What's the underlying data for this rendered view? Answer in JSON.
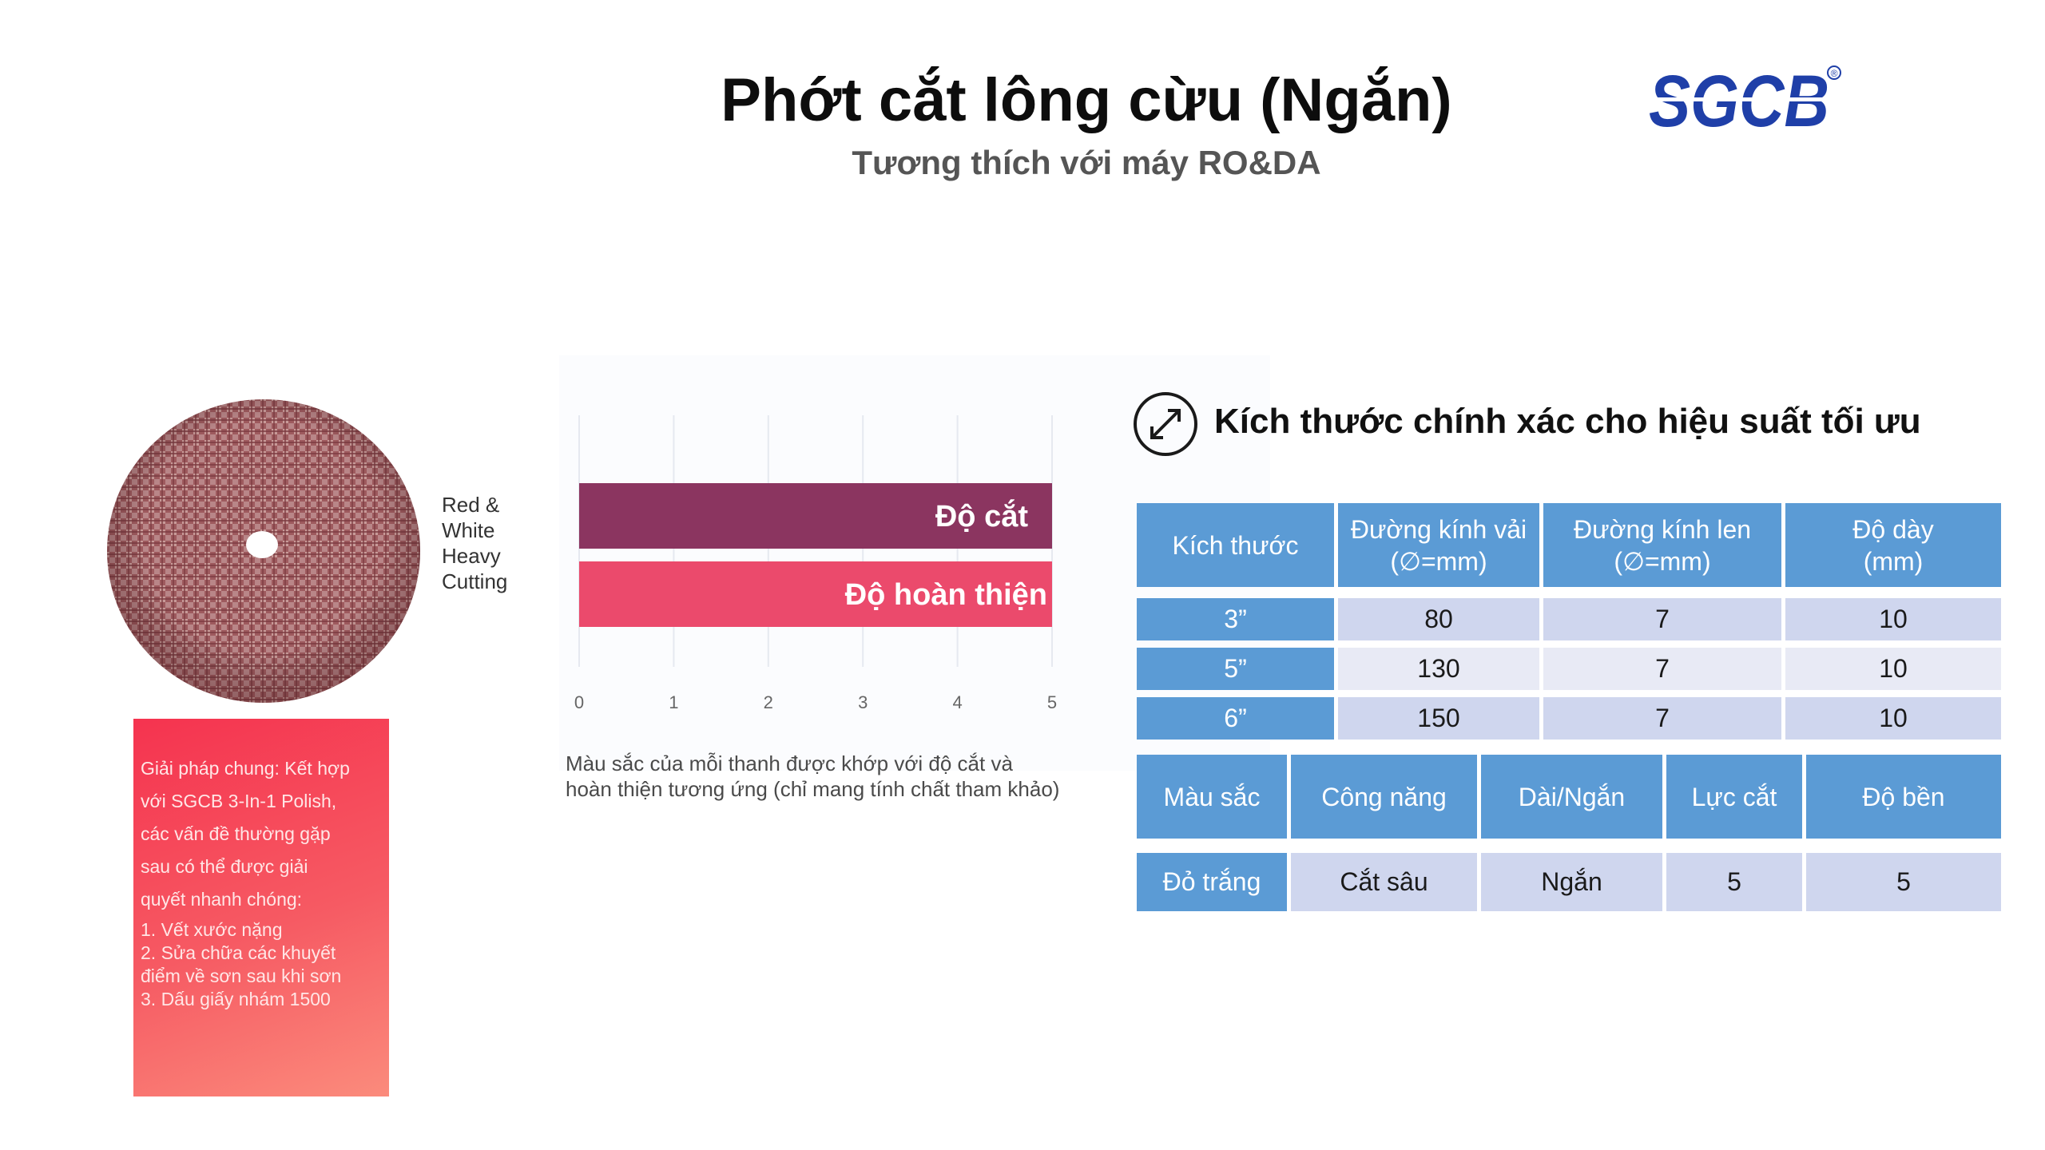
{
  "header": {
    "title": "Phớt cắt lông cừu (Ngắn)",
    "subtitle": "Tương thích với máy RO&DA",
    "logo_text": "SGCB",
    "logo_registered": "®"
  },
  "product": {
    "image_icon": "wool-pad-image",
    "label": [
      "Red &",
      "White",
      "Heavy",
      "Cutting"
    ]
  },
  "solution": {
    "lines": [
      "Giải pháp chung: Kết hợp",
      "với SGCB 3-In-1 Polish,",
      "các vấn đề thường gặp",
      "sau có thể được giải",
      "quyết nhanh chóng:"
    ],
    "items": [
      "1. Vết xước nặng",
      "2. Sửa chữa các khuyết",
      "điểm về sơn sau khi sơn",
      "3. Dấu giấy nhám 1500"
    ]
  },
  "chart_data": {
    "type": "bar",
    "orientation": "horizontal",
    "categories": [
      "Độ cắt",
      "Độ hoàn thiện"
    ],
    "values": [
      5,
      5
    ],
    "colors": [
      "#8b3560",
      "#eb4a6c"
    ],
    "xlim": [
      0,
      5
    ],
    "xticks": [
      "0",
      "1",
      "2",
      "3",
      "4",
      "5"
    ],
    "grid": true,
    "note": "Màu sắc của mỗi thanh được khớp với độ cắt và hoàn thiện tương ứng (chỉ mang tính chất tham khảo)"
  },
  "sizes": {
    "icon": "expand-arrows-icon",
    "title": "Kích thước chính xác cho hiệu suất tối ưu",
    "headers": [
      "Kích thước",
      [
        "Đường kính vải",
        "(∅=mm)"
      ],
      [
        "Đường kính len",
        "(∅=mm)"
      ],
      [
        "Độ dày",
        "(mm)"
      ]
    ],
    "rows": [
      [
        "3”",
        "80",
        "7",
        "10"
      ],
      [
        "5”",
        "130",
        "7",
        "10"
      ],
      [
        "6”",
        "150",
        "7",
        "10"
      ]
    ]
  },
  "specs": {
    "headers": [
      "Màu sắc",
      "Công năng",
      "Dài/Ngắn",
      "Lực cắt",
      "Độ bền"
    ],
    "row": [
      "Đỏ trắng",
      "Cắt sâu",
      "Ngắn",
      "5",
      "5"
    ]
  },
  "colors": {
    "accent_blue": "#5b9bd5",
    "logo_blue": "#1f3fa8",
    "bar_cut": "#8b3560",
    "bar_finish": "#eb4a6c"
  }
}
